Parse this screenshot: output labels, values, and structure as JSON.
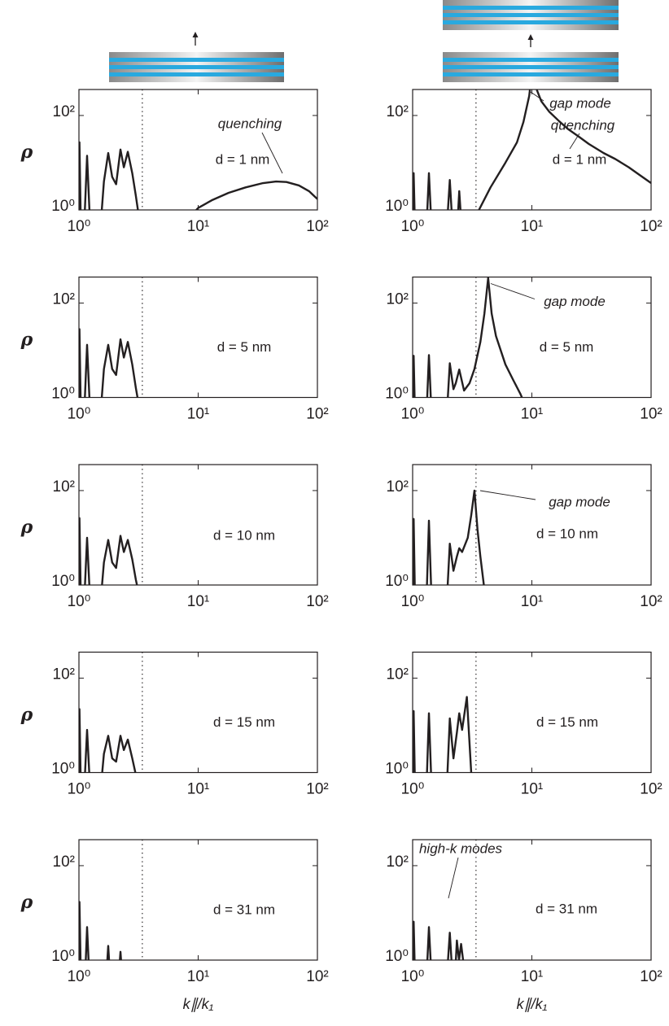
{
  "chart_data": [
    {
      "type": "line",
      "log_x": true,
      "log_y": true,
      "xlim": [
        1,
        100
      ],
      "ylim": [
        1,
        355
      ],
      "xticks": [
        {
          "value": 1,
          "label": "10⁰"
        },
        {
          "value": 10,
          "label": "10¹"
        },
        {
          "value": 100,
          "label": "10²"
        }
      ],
      "yticks": [
        {
          "value": 1,
          "label": "10⁰"
        },
        {
          "value": 100,
          "label": "10²"
        }
      ],
      "ylabel": "ρ",
      "vlines": [
        3.4
      ],
      "annotations": [
        "quenching",
        "d = 1 nm"
      ],
      "series": [
        {
          "color": "#231f20",
          "x": [
            1.0,
            1.01,
            1.04,
            1.1,
            1.17,
            1.25,
            1.5,
            1.62,
            1.76,
            1.9,
            2.05,
            2.23,
            2.38,
            2.57,
            2.8,
            3.0,
            3.25,
            8,
            10,
            13,
            18,
            25,
            35,
            45,
            55,
            70,
            85,
            100
          ],
          "values": [
            0.3,
            27,
            0.3,
            0.3,
            14,
            0.3,
            0.3,
            4,
            16,
            5,
            3.5,
            19,
            8,
            17,
            6,
            2,
            0.5,
            0.6,
            1.1,
            1.6,
            2.3,
            3.0,
            3.7,
            4.0,
            3.9,
            3.3,
            2.5,
            1.7
          ]
        }
      ]
    },
    {
      "type": "line",
      "log_x": true,
      "log_y": true,
      "xlim": [
        1,
        100
      ],
      "ylim": [
        1,
        355
      ],
      "xticks": [
        {
          "value": 1,
          "label": "10⁰"
        },
        {
          "value": 10,
          "label": "10¹"
        },
        {
          "value": 100,
          "label": "10²"
        }
      ],
      "yticks": [
        {
          "value": 1,
          "label": "10⁰"
        },
        {
          "value": 100,
          "label": "10²"
        }
      ],
      "vlines": [
        3.4
      ],
      "annotations": [
        "gap mode",
        "quenching",
        "d = 1 nm"
      ],
      "series": [
        {
          "color": "#231f20",
          "x": [
            1.0,
            1.02,
            1.05,
            1.3,
            1.37,
            1.45,
            1.92,
            2.05,
            2.18,
            2.35,
            2.46,
            2.6,
            3.6,
            4.5,
            6,
            7.5,
            8.5,
            9.5,
            10,
            11,
            12,
            14,
            17,
            20,
            25,
            30,
            40,
            50,
            65,
            80,
            100
          ],
          "values": [
            0.3,
            6,
            0.3,
            0.3,
            6,
            0.3,
            0.3,
            4.3,
            0.3,
            0.3,
            2.5,
            0.3,
            1,
            3,
            10,
            27,
            73,
            260,
            800,
            350,
            200,
            120,
            75,
            52,
            35,
            25,
            16,
            12,
            8,
            5.5,
            3.7
          ]
        }
      ]
    },
    {
      "type": "line",
      "log_x": true,
      "log_y": true,
      "xlim": [
        1,
        100
      ],
      "ylim": [
        1,
        355
      ],
      "xticks": [
        {
          "value": 1,
          "label": "10⁰"
        },
        {
          "value": 10,
          "label": "10¹"
        },
        {
          "value": 100,
          "label": "10²"
        }
      ],
      "yticks": [
        {
          "value": 1,
          "label": "10⁰"
        },
        {
          "value": 100,
          "label": "10²"
        }
      ],
      "ylabel": "ρ",
      "vlines": [
        3.4
      ],
      "annotations": [
        "d = 5 nm"
      ],
      "series": [
        {
          "color": "#231f20",
          "x": [
            1.0,
            1.01,
            1.04,
            1.1,
            1.17,
            1.25,
            1.5,
            1.62,
            1.76,
            1.9,
            2.05,
            2.23,
            2.38,
            2.57,
            2.8,
            3.0,
            3.25
          ],
          "values": [
            0.3,
            28,
            0.3,
            0.3,
            13,
            0.3,
            0.3,
            4,
            13,
            4,
            3,
            17,
            7,
            15,
            5,
            1.6,
            0.5
          ]
        }
      ]
    },
    {
      "type": "line",
      "log_x": true,
      "log_y": true,
      "xlim": [
        1,
        100
      ],
      "ylim": [
        1,
        355
      ],
      "xticks": [
        {
          "value": 1,
          "label": "10⁰"
        },
        {
          "value": 10,
          "label": "10¹"
        },
        {
          "value": 100,
          "label": "10²"
        }
      ],
      "yticks": [
        {
          "value": 1,
          "label": "10⁰"
        },
        {
          "value": 100,
          "label": "10²"
        }
      ],
      "vlines": [
        3.4
      ],
      "annotations": [
        "gap mode",
        "d = 5 nm"
      ],
      "series": [
        {
          "color": "#231f20",
          "x": [
            1.0,
            1.02,
            1.05,
            1.3,
            1.37,
            1.45,
            1.92,
            2.05,
            2.2,
            2.3,
            2.46,
            2.7,
            3.0,
            3.3,
            3.7,
            4.0,
            4.3,
            4.6,
            5.0,
            6,
            7,
            8,
            9
          ],
          "values": [
            0.3,
            7.6,
            0.3,
            0.3,
            7.9,
            0.3,
            0.3,
            5.3,
            1.5,
            2,
            3.9,
            1.4,
            2,
            4,
            15,
            60,
            340,
            60,
            20,
            5,
            2.3,
            1.2,
            0.6
          ]
        }
      ]
    },
    {
      "type": "line",
      "log_x": true,
      "log_y": true,
      "xlim": [
        1,
        100
      ],
      "ylim": [
        1,
        355
      ],
      "xticks": [
        {
          "value": 1,
          "label": "10⁰"
        },
        {
          "value": 10,
          "label": "10¹"
        },
        {
          "value": 100,
          "label": "10²"
        }
      ],
      "yticks": [
        {
          "value": 1,
          "label": "10⁰"
        },
        {
          "value": 100,
          "label": "10²"
        }
      ],
      "ylabel": "ρ",
      "vlines": [
        3.4
      ],
      "annotations": [
        "d = 10 nm"
      ],
      "series": [
        {
          "color": "#231f20",
          "x": [
            1.0,
            1.01,
            1.04,
            1.1,
            1.17,
            1.25,
            1.5,
            1.62,
            1.76,
            1.9,
            2.05,
            2.23,
            2.38,
            2.57,
            2.8,
            3.0,
            3.25
          ],
          "values": [
            0.3,
            26,
            0.3,
            0.3,
            10,
            0.3,
            0.3,
            3,
            9,
            3,
            2.3,
            11,
            5,
            9,
            3.5,
            1.3,
            0.5
          ]
        }
      ]
    },
    {
      "type": "line",
      "log_x": true,
      "log_y": true,
      "xlim": [
        1,
        100
      ],
      "ylim": [
        1,
        355
      ],
      "xticks": [
        {
          "value": 1,
          "label": "10⁰"
        },
        {
          "value": 10,
          "label": "10¹"
        },
        {
          "value": 100,
          "label": "10²"
        }
      ],
      "yticks": [
        {
          "value": 1,
          "label": "10⁰"
        },
        {
          "value": 100,
          "label": "10²"
        }
      ],
      "vlines": [
        3.4
      ],
      "annotations": [
        "gap mode",
        "d = 10 nm"
      ],
      "series": [
        {
          "color": "#231f20",
          "x": [
            1.0,
            1.02,
            1.05,
            1.3,
            1.37,
            1.45,
            1.92,
            2.05,
            2.2,
            2.35,
            2.46,
            2.6,
            2.9,
            3.1,
            3.3,
            3.5,
            3.7,
            4.0
          ],
          "values": [
            0.3,
            25,
            0.3,
            0.3,
            23,
            0.3,
            0.3,
            7.5,
            2,
            4,
            6,
            5,
            10,
            30,
            100,
            15,
            4,
            0.8
          ]
        }
      ]
    },
    {
      "type": "line",
      "log_x": true,
      "log_y": true,
      "xlim": [
        1,
        100
      ],
      "ylim": [
        1,
        355
      ],
      "xticks": [
        {
          "value": 1,
          "label": "10⁰"
        },
        {
          "value": 10,
          "label": "10¹"
        },
        {
          "value": 100,
          "label": "10²"
        }
      ],
      "yticks": [
        {
          "value": 1,
          "label": "10⁰"
        },
        {
          "value": 100,
          "label": "10²"
        }
      ],
      "ylabel": "ρ",
      "vlines": [
        3.4
      ],
      "annotations": [
        "d = 15 nm"
      ],
      "series": [
        {
          "color": "#231f20",
          "x": [
            1.0,
            1.01,
            1.04,
            1.1,
            1.17,
            1.25,
            1.5,
            1.62,
            1.76,
            1.9,
            2.05,
            2.23,
            2.38,
            2.57,
            2.8,
            3.0,
            3.25
          ],
          "values": [
            0.3,
            22,
            0.3,
            0.3,
            8,
            0.3,
            0.3,
            2.5,
            6,
            2,
            1.7,
            6,
            3,
            5,
            2,
            0.9,
            0.4
          ]
        }
      ]
    },
    {
      "type": "line",
      "log_x": true,
      "log_y": true,
      "xlim": [
        1,
        100
      ],
      "ylim": [
        1,
        355
      ],
      "xticks": [
        {
          "value": 1,
          "label": "10⁰"
        },
        {
          "value": 10,
          "label": "10¹"
        },
        {
          "value": 100,
          "label": "10²"
        }
      ],
      "yticks": [
        {
          "value": 1,
          "label": "10⁰"
        },
        {
          "value": 100,
          "label": "10²"
        }
      ],
      "vlines": [
        3.4
      ],
      "annotations": [
        "d = 15 nm"
      ],
      "series": [
        {
          "color": "#231f20",
          "x": [
            1.0,
            1.02,
            1.05,
            1.3,
            1.37,
            1.45,
            1.92,
            2.05,
            2.2,
            2.35,
            2.46,
            2.6,
            2.85,
            3.1,
            3.3
          ],
          "values": [
            0.3,
            20,
            0.3,
            0.3,
            18,
            0.3,
            0.3,
            14,
            2,
            7,
            18,
            8,
            40,
            1,
            0.3
          ]
        }
      ]
    },
    {
      "type": "line",
      "log_x": true,
      "log_y": true,
      "xlim": [
        1,
        100
      ],
      "ylim": [
        1,
        355
      ],
      "xticks": [
        {
          "value": 1,
          "label": "10⁰"
        },
        {
          "value": 10,
          "label": "10¹"
        },
        {
          "value": 100,
          "label": "10²"
        }
      ],
      "yticks": [
        {
          "value": 1,
          "label": "10⁰"
        },
        {
          "value": 100,
          "label": "10²"
        }
      ],
      "ylabel": "ρ",
      "xlabel": "k∥/k₁",
      "vlines": [
        3.4
      ],
      "annotations": [
        "d = 31 nm"
      ],
      "series": [
        {
          "color": "#231f20",
          "x": [
            1.0,
            1.01,
            1.04,
            1.12,
            1.17,
            1.23,
            1.68,
            1.76,
            1.84,
            2.13,
            2.23,
            2.33
          ],
          "values": [
            0.3,
            17,
            0.3,
            0.3,
            5,
            0.3,
            0.3,
            2,
            0.3,
            0.3,
            1.5,
            0.3
          ]
        }
      ]
    },
    {
      "type": "line",
      "log_x": true,
      "log_y": true,
      "xlim": [
        1,
        100
      ],
      "ylim": [
        1,
        355
      ],
      "xticks": [
        {
          "value": 1,
          "label": "10⁰"
        },
        {
          "value": 10,
          "label": "10¹"
        },
        {
          "value": 100,
          "label": "10²"
        }
      ],
      "yticks": [
        {
          "value": 1,
          "label": "10⁰"
        },
        {
          "value": 100,
          "label": "10²"
        }
      ],
      "xlabel": "k∥/k₁",
      "vlines": [
        3.4
      ],
      "annotations": [
        "high-k modes",
        "d = 31 nm"
      ],
      "series": [
        {
          "color": "#231f20",
          "x": [
            1.0,
            1.02,
            1.05,
            1.3,
            1.37,
            1.45,
            1.92,
            2.05,
            2.18,
            2.25,
            2.35,
            2.45,
            2.55,
            2.65,
            2.8
          ],
          "values": [
            0.3,
            6.5,
            0.3,
            0.3,
            5,
            0.3,
            0.3,
            3.8,
            0.3,
            0.3,
            2.6,
            1,
            2.2,
            1,
            0.3
          ]
        }
      ]
    }
  ]
}
